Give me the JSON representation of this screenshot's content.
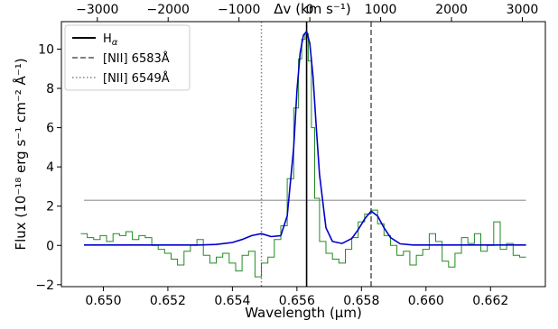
{
  "chart_data": {
    "type": "line",
    "xlabel": "Wavelength (μm)",
    "ylabel": "Flux (10⁻¹⁸ erg s⁻¹ cm⁻² Å⁻¹)",
    "top_xlabel": "Δv (km s⁻¹)",
    "xlim": [
      0.6487,
      0.6637
    ],
    "ylim": [
      -2.1,
      11.4
    ],
    "top_xlim": [
      -3507,
      3325
    ],
    "x_ticks": [
      0.65,
      0.652,
      0.654,
      0.656,
      0.658,
      0.66,
      0.662
    ],
    "x_tick_labels": [
      "0.650",
      "0.652",
      "0.654",
      "0.656",
      "0.658",
      "0.660",
      "0.662"
    ],
    "y_ticks": [
      -2,
      0,
      2,
      4,
      6,
      8,
      10
    ],
    "y_tick_labels": [
      "−2",
      "0",
      "2",
      "4",
      "6",
      "8",
      "10"
    ],
    "top_ticks": [
      -3000,
      -2000,
      -1000,
      0,
      1000,
      2000,
      3000
    ],
    "top_tick_labels": [
      "−3000",
      "−2000",
      "−1000",
      "0",
      "1000",
      "2000",
      "3000"
    ],
    "grid": false,
    "legend_position": "top-left",
    "legend": [
      {
        "label": "H",
        "sub": "α",
        "style": "solid",
        "color": "#000000"
      },
      {
        "label": "[NII] 6583Å",
        "style": "dashed",
        "color": "#808080"
      },
      {
        "label": "[NII] 6549Å",
        "style": "dotted",
        "color": "#808080"
      }
    ],
    "vlines": [
      {
        "x": 0.6563,
        "color": "#000000",
        "style": "solid"
      },
      {
        "x": 0.6583,
        "color": "#808080",
        "style": "dashed"
      },
      {
        "x": 0.6549,
        "color": "#808080",
        "style": "dotted"
      }
    ],
    "hline": {
      "y": 2.3,
      "xrange": [
        0.6494,
        0.6631
      ],
      "color": "#909090"
    },
    "series": [
      {
        "color": "#228b22",
        "style": "step",
        "x": [
          0.6494,
          0.6496,
          0.6498,
          0.65,
          0.6502,
          0.6504,
          0.6506,
          0.6508,
          0.651,
          0.6512,
          0.6514,
          0.6516,
          0.6518,
          0.652,
          0.6522,
          0.6524,
          0.6526,
          0.6528,
          0.653,
          0.6532,
          0.6534,
          0.6536,
          0.6538,
          0.654,
          0.6542,
          0.6544,
          0.6546,
          0.6548,
          0.655,
          0.6552,
          0.6554,
          0.6556,
          0.6558,
          0.656,
          0.6561,
          0.6562,
          0.6563,
          0.6564,
          0.6565,
          0.6566,
          0.6568,
          0.657,
          0.6572,
          0.6574,
          0.6576,
          0.6578,
          0.658,
          0.6582,
          0.6584,
          0.6586,
          0.6588,
          0.659,
          0.6592,
          0.6594,
          0.6596,
          0.6598,
          0.66,
          0.6602,
          0.6604,
          0.6606,
          0.6608,
          0.661,
          0.6612,
          0.6614,
          0.6616,
          0.6618,
          0.662,
          0.6622,
          0.6624,
          0.6626,
          0.6628,
          0.663
        ],
        "y": [
          0.6,
          0.4,
          0.3,
          0.5,
          0.2,
          0.6,
          0.5,
          0.7,
          0.3,
          0.5,
          0.4,
          0.0,
          -0.2,
          -0.4,
          -0.7,
          -1.0,
          -0.3,
          0.0,
          0.3,
          -0.5,
          -0.9,
          -0.6,
          -0.4,
          -0.9,
          -1.3,
          -0.5,
          -0.3,
          -1.6,
          -0.9,
          -0.6,
          0.3,
          1.0,
          3.4,
          7.0,
          9.5,
          10.5,
          10.8,
          9.4,
          6.0,
          2.4,
          0.2,
          -0.4,
          -0.7,
          -0.9,
          -0.2,
          0.4,
          1.2,
          1.6,
          1.8,
          1.1,
          0.5,
          0.0,
          -0.5,
          -0.3,
          -1.0,
          -0.5,
          -0.2,
          0.6,
          0.2,
          -0.8,
          -1.1,
          -0.4,
          0.4,
          0.1,
          0.6,
          -0.3,
          0.0,
          1.2,
          -0.2,
          0.1,
          -0.5,
          -0.6
        ]
      },
      {
        "color": "#0000cd",
        "style": "line",
        "x": [
          0.6494,
          0.65,
          0.651,
          0.652,
          0.653,
          0.6535,
          0.654,
          0.6543,
          0.6546,
          0.6549,
          0.6552,
          0.6555,
          0.6557,
          0.6559,
          0.656,
          0.6561,
          0.6562,
          0.6563,
          0.6564,
          0.6565,
          0.6566,
          0.6567,
          0.6569,
          0.6571,
          0.6574,
          0.6577,
          0.6579,
          0.6581,
          0.6583,
          0.6585,
          0.6587,
          0.6589,
          0.6592,
          0.6596,
          0.66,
          0.661,
          0.662,
          0.6631
        ],
        "y": [
          0.02,
          0.02,
          0.02,
          0.02,
          0.02,
          0.05,
          0.15,
          0.3,
          0.5,
          0.6,
          0.45,
          0.5,
          1.5,
          5.0,
          7.9,
          9.8,
          10.7,
          10.9,
          10.3,
          8.6,
          6.0,
          3.6,
          0.9,
          0.2,
          0.1,
          0.35,
          0.8,
          1.35,
          1.75,
          1.5,
          0.9,
          0.4,
          0.08,
          0.02,
          0.02,
          0.02,
          0.02,
          0.02
        ]
      }
    ]
  }
}
